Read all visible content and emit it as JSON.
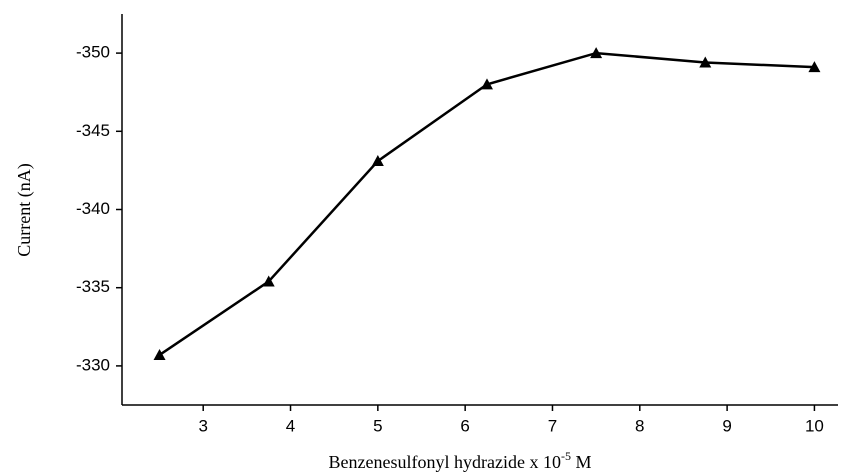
{
  "chart_data": {
    "type": "line",
    "ylabel": "Current (nA)",
    "xlabel": {
      "text": "Benzenesulfonyl hydrazide x 10",
      "superscript": "-5",
      "suffix": " M"
    },
    "x": [
      2.5,
      3.75,
      5,
      6.25,
      7.5,
      8.75,
      10
    ],
    "series": [
      {
        "color": "#000000",
        "marker": "triangle",
        "values": [
          -330.7,
          -335.4,
          -343.1,
          -348.0,
          -350.0,
          -349.4,
          -349.1
        ]
      }
    ],
    "xlim": [
      2.07,
      10.27
    ],
    "xticks": [
      3,
      4,
      5,
      6,
      7,
      8,
      9,
      10
    ],
    "ylim": [
      -327.5,
      -352.5
    ],
    "yticks": [
      -330,
      -335,
      -340,
      -345,
      -350
    ],
    "grid": false
  }
}
